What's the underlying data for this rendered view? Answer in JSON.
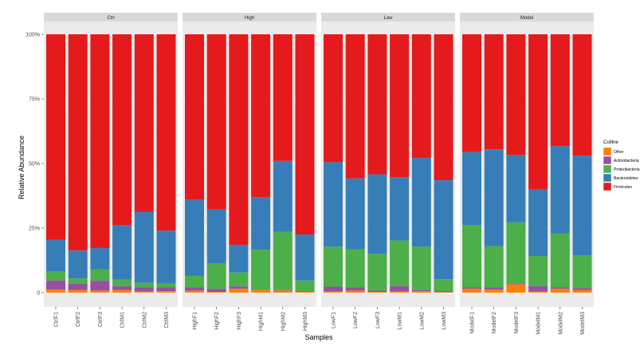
{
  "chart_data": {
    "type": "bar",
    "stacked": true,
    "facets": [
      {
        "name": "Ctrl",
        "samples": [
          "CtrlF1",
          "CtrlF2",
          "CtrlF3",
          "CtrlM1",
          "CtrlM2",
          "CtrlM3"
        ],
        "values": {
          "Other": [
            1.2,
            1.0,
            0.8,
            1.0,
            0.5,
            0.6
          ],
          "Actinobacteria": [
            3.5,
            2.5,
            3.8,
            1.5,
            1.5,
            1.4
          ],
          "Proteobacteria": [
            3.5,
            2.0,
            4.5,
            2.5,
            1.8,
            1.5
          ],
          "Bacteroidetes": [
            12.3,
            10.8,
            8.2,
            21.2,
            27.4,
            20.5
          ],
          "Firmicutes": [
            79.5,
            83.7,
            82.7,
            73.8,
            68.8,
            76.0
          ]
        }
      },
      {
        "name": "High",
        "samples": [
          "HighF1",
          "HighF2",
          "HighF3",
          "HighM1",
          "HighM2",
          "HighM3"
        ],
        "values": {
          "Other": [
            0.8,
            0.3,
            1.5,
            1.0,
            0.8,
            0.3
          ],
          "Actinobacteria": [
            1.2,
            1.2,
            0.9,
            0.2,
            0.2,
            0.2
          ],
          "Proteobacteria": [
            4.5,
            9.7,
            5.4,
            15.4,
            22.5,
            4.2
          ],
          "Bacteroidetes": [
            29.5,
            21.0,
            10.7,
            20.4,
            27.5,
            17.8
          ],
          "Firmicutes": [
            64.0,
            67.8,
            81.5,
            63.0,
            49.0,
            77.5
          ]
        }
      },
      {
        "name": "Low",
        "samples": [
          "LowF1",
          "LowF2",
          "LowF3",
          "LowM1",
          "LowM2",
          "LowM3"
        ],
        "values": {
          "Other": [
            0.5,
            0.8,
            0.3,
            0.5,
            0.6,
            0.2
          ],
          "Actinobacteria": [
            1.8,
            1.2,
            0.5,
            2.0,
            0.4,
            0.4
          ],
          "Proteobacteria": [
            15.5,
            14.8,
            14.2,
            17.7,
            16.8,
            4.6
          ],
          "Bacteroidetes": [
            32.7,
            27.4,
            30.8,
            24.5,
            34.3,
            38.3
          ],
          "Firmicutes": [
            49.5,
            55.8,
            54.2,
            55.3,
            47.9,
            56.5
          ]
        }
      },
      {
        "name": "Model",
        "samples": [
          "ModelF1",
          "ModelF2",
          "ModelF3",
          "ModelM1",
          "ModelM2",
          "ModelM3"
        ],
        "values": {
          "Other": [
            1.5,
            1.2,
            3.2,
            0.5,
            1.5,
            1.0
          ],
          "Actinobacteria": [
            0.5,
            0.8,
            0.3,
            2.0,
            0.5,
            0.8
          ],
          "Proteobacteria": [
            24.2,
            16.0,
            23.7,
            11.7,
            21.0,
            12.7
          ],
          "Bacteroidetes": [
            28.3,
            37.5,
            26.1,
            25.8,
            33.7,
            38.5
          ],
          "Firmicutes": [
            45.5,
            44.5,
            46.7,
            60.0,
            43.3,
            47.0
          ]
        }
      }
    ],
    "stack_order": [
      "Other",
      "Actinobacteria",
      "Proteobacteria",
      "Bacteroidetes",
      "Firmicutes"
    ],
    "colors": {
      "Other": "#ff7f00",
      "Actinobacteria": "#984ea3",
      "Proteobacteria": "#4daf4a",
      "Bacteroidetes": "#377eb8",
      "Firmicutes": "#e41a1c"
    },
    "legend_title": "Cutline",
    "legend_order": [
      "Other",
      "Actinobacteria",
      "Proteobacteria",
      "Bacteroidetes",
      "Firmicutes"
    ],
    "xlabel": "Samples",
    "ylabel": "Relative Abundance",
    "ylim": [
      0,
      100
    ],
    "yticks": [
      "0",
      "25%",
      "50%",
      "75%",
      "100%"
    ],
    "legend_position": "right"
  }
}
